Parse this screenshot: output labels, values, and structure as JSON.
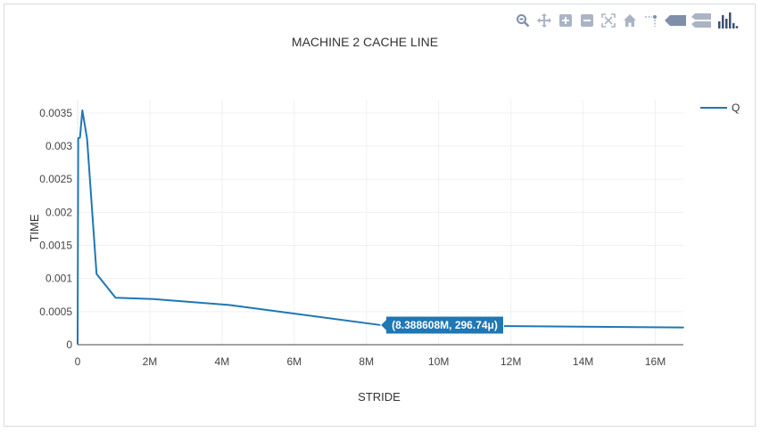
{
  "modebar": {
    "buttons": [
      {
        "name": "zoom-icon",
        "color": "#7f8fa9"
      },
      {
        "name": "pan-icon",
        "color": "#aab4c5"
      },
      {
        "name": "zoom-in-icon",
        "color": "#aab4c5"
      },
      {
        "name": "zoom-out-icon",
        "color": "#aab4c5"
      },
      {
        "name": "autoscale-icon",
        "color": "#aab4c5"
      },
      {
        "name": "home-icon",
        "color": "#aab4c5"
      },
      {
        "name": "spike-lines-icon",
        "color": "#aab4c5"
      },
      {
        "name": "hover-closest-icon",
        "color": "#7f8fa9"
      },
      {
        "name": "hover-compare-icon",
        "color": "#aab4c5"
      },
      {
        "name": "plotly-logo-icon",
        "color": "#3f4f75"
      }
    ]
  },
  "chart_data": {
    "type": "line",
    "title": "MACHINE 2 CACHE LINE",
    "xlabel": "STRIDE",
    "ylabel": "TIME",
    "xlim": [
      0,
      16777216
    ],
    "ylim": [
      0,
      0.0037
    ],
    "x_ticks": [
      {
        "value": 0,
        "label": "0"
      },
      {
        "value": 2000000,
        "label": "2M"
      },
      {
        "value": 4000000,
        "label": "4M"
      },
      {
        "value": 6000000,
        "label": "6M"
      },
      {
        "value": 8000000,
        "label": "8M"
      },
      {
        "value": 10000000,
        "label": "10M"
      },
      {
        "value": 12000000,
        "label": "12M"
      },
      {
        "value": 14000000,
        "label": "14M"
      },
      {
        "value": 16000000,
        "label": "16M"
      }
    ],
    "y_ticks": [
      {
        "value": 0,
        "label": "0"
      },
      {
        "value": 0.0005,
        "label": "0.0005"
      },
      {
        "value": 0.001,
        "label": "0.001"
      },
      {
        "value": 0.0015,
        "label": "0.0015"
      },
      {
        "value": 0.002,
        "label": "0.002"
      },
      {
        "value": 0.0025,
        "label": "0.0025"
      },
      {
        "value": 0.003,
        "label": "0.003"
      },
      {
        "value": 0.0035,
        "label": "0.0035"
      }
    ],
    "grid": true,
    "legend_position": "top-right",
    "series": [
      {
        "name": "Q",
        "color": "#1f77b4",
        "x": [
          0,
          16384,
          32768,
          65536,
          131072,
          262144,
          524288,
          1048576,
          2097152,
          4194304,
          8388608,
          16777216
        ],
        "y": [
          1e-05,
          0.00312,
          0.00312,
          0.00313,
          0.00354,
          0.00311,
          0.00107,
          0.00071,
          0.00069,
          0.0006,
          0.00029674,
          0.00026
        ]
      }
    ],
    "hover": {
      "x": 8388608,
      "y": 0.00029674,
      "label": "(8.388608M, 296.74μ)"
    }
  }
}
